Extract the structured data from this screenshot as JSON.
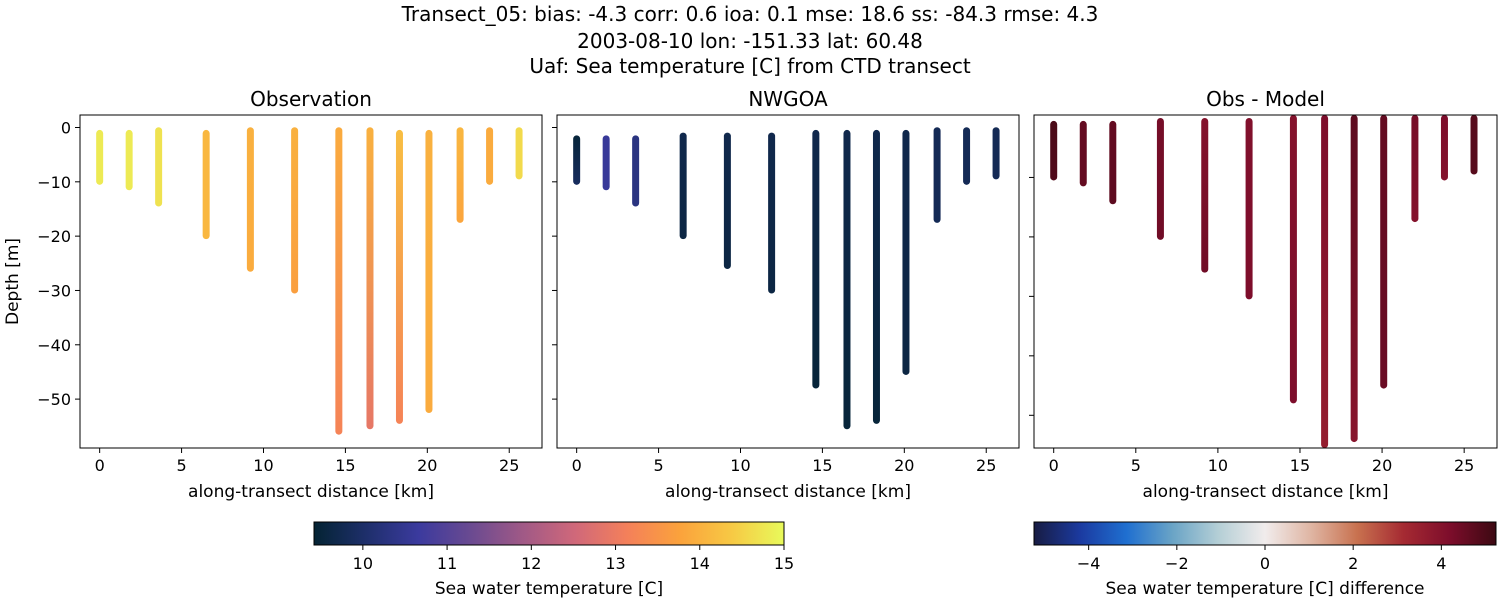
{
  "title_lines": [
    "Transect_05: bias: -4.3  corr: 0.6  ioa: 0.1  mse: 18.6  ss: -84.3  rmse: 4.3",
    "2003-08-10 lon: -151.33 lat: 60.48",
    "Uaf: Sea temperature [C] from CTD transect"
  ],
  "chart_data": [
    {
      "type": "scatter",
      "title": "Observation",
      "xlabel": "along-transect distance [km]",
      "ylabel": "Depth [m]",
      "xlim": [
        -1.2,
        27
      ],
      "ylim": [
        -59,
        2.3
      ],
      "xticks": [
        0,
        5,
        10,
        15,
        20,
        25
      ],
      "yticks": [
        0,
        -10,
        -20,
        -30,
        -40,
        -50
      ],
      "columns": [
        {
          "x": 0,
          "top": -1,
          "bottom": -10,
          "values": [
            14.8,
            14.8
          ]
        },
        {
          "x": 1.8,
          "top": -1,
          "bottom": -11,
          "values": [
            14.8,
            14.8
          ]
        },
        {
          "x": 3.6,
          "top": -0.5,
          "bottom": -14,
          "values": [
            14.7,
            14.7
          ]
        },
        {
          "x": 6.5,
          "top": -1,
          "bottom": -20,
          "values": [
            14.1,
            14.1
          ]
        },
        {
          "x": 9.2,
          "top": -0.5,
          "bottom": -26,
          "values": [
            14.0,
            13.9
          ]
        },
        {
          "x": 11.9,
          "top": -0.5,
          "bottom": -30,
          "values": [
            14.0,
            13.7
          ]
        },
        {
          "x": 14.6,
          "top": -0.5,
          "bottom": -56,
          "values": [
            13.9,
            13.2
          ]
        },
        {
          "x": 16.5,
          "top": -0.5,
          "bottom": -55,
          "values": [
            14.0,
            12.9
          ]
        },
        {
          "x": 18.3,
          "top": -1,
          "bottom": -54,
          "values": [
            14.2,
            13.2
          ]
        },
        {
          "x": 20.1,
          "top": -1,
          "bottom": -52,
          "values": [
            14.0,
            13.9
          ]
        },
        {
          "x": 22,
          "top": -0.5,
          "bottom": -17,
          "values": [
            14.1,
            13.8
          ]
        },
        {
          "x": 23.8,
          "top": -0.5,
          "bottom": -10,
          "values": [
            13.9,
            13.9
          ]
        },
        {
          "x": 25.6,
          "top": -0.5,
          "bottom": -9,
          "values": [
            14.6,
            14.6
          ]
        }
      ]
    },
    {
      "type": "scatter",
      "title": "NWGOA",
      "xlabel": "along-transect distance [km]",
      "xlim": [
        -1.2,
        27
      ],
      "ylim": [
        -59,
        2.3
      ],
      "xticks": [
        0,
        5,
        10,
        15,
        20,
        25
      ],
      "yticks": [
        0,
        -10,
        -20,
        -30,
        -40,
        -50
      ],
      "columns": [
        {
          "x": 0,
          "top": -2,
          "bottom": -10,
          "values": [
            9.5,
            9.9
          ]
        },
        {
          "x": 1.8,
          "top": -2,
          "bottom": -11,
          "values": [
            10.6,
            10.6
          ]
        },
        {
          "x": 3.6,
          "top": -2,
          "bottom": -14,
          "values": [
            10.3,
            10.3
          ]
        },
        {
          "x": 6.5,
          "top": -1.5,
          "bottom": -20,
          "values": [
            9.7,
            9.6
          ]
        },
        {
          "x": 9.2,
          "top": -1.5,
          "bottom": -25.5,
          "values": [
            9.7,
            9.6
          ]
        },
        {
          "x": 11.9,
          "top": -1.5,
          "bottom": -30,
          "values": [
            9.7,
            9.6
          ]
        },
        {
          "x": 14.6,
          "top": -1,
          "bottom": -47.5,
          "values": [
            9.7,
            9.5
          ]
        },
        {
          "x": 16.5,
          "top": -1,
          "bottom": -55,
          "values": [
            9.7,
            9.5
          ]
        },
        {
          "x": 18.3,
          "top": -1,
          "bottom": -54,
          "values": [
            9.7,
            9.5
          ]
        },
        {
          "x": 20.1,
          "top": -1,
          "bottom": -45,
          "values": [
            9.7,
            9.6
          ]
        },
        {
          "x": 22,
          "top": -0.5,
          "bottom": -17,
          "values": [
            9.8,
            9.8
          ]
        },
        {
          "x": 23.8,
          "top": -0.5,
          "bottom": -10,
          "values": [
            9.8,
            9.8
          ]
        },
        {
          "x": 25.6,
          "top": -0.5,
          "bottom": -9,
          "values": [
            9.8,
            9.8
          ]
        }
      ]
    },
    {
      "type": "scatter",
      "title": "Obs - Model",
      "xlabel": "along-transect distance [km]",
      "xlim": [
        -1.2,
        27
      ],
      "ylim": [
        -55.5,
        0.5
      ],
      "xticks": [
        0,
        5,
        10,
        15,
        20,
        25
      ],
      "yticks": [
        -10,
        -20,
        -30,
        -40,
        -50
      ],
      "columns": [
        {
          "x": 0,
          "top": -1,
          "bottom": -10,
          "values": [
            5.0,
            4.9
          ]
        },
        {
          "x": 1.8,
          "top": -1,
          "bottom": -11,
          "values": [
            4.6,
            4.6
          ]
        },
        {
          "x": 3.6,
          "top": -1,
          "bottom": -14,
          "values": [
            4.6,
            4.7
          ]
        },
        {
          "x": 6.5,
          "top": -0.5,
          "bottom": -20,
          "values": [
            4.3,
            4.4
          ]
        },
        {
          "x": 9.2,
          "top": -0.5,
          "bottom": -25.5,
          "values": [
            4.0,
            4.4
          ]
        },
        {
          "x": 11.9,
          "top": -0.5,
          "bottom": -30,
          "values": [
            4.1,
            4.2
          ]
        },
        {
          "x": 14.6,
          "top": 0.5,
          "bottom": -47.5,
          "values": [
            4.0,
            4.2
          ]
        },
        {
          "x": 16.5,
          "top": 0.5,
          "bottom": -55,
          "values": [
            4.2,
            3.6
          ]
        },
        {
          "x": 18.3,
          "top": 0.5,
          "bottom": -54,
          "values": [
            4.7,
            3.9
          ]
        },
        {
          "x": 20.1,
          "top": 0.5,
          "bottom": -45,
          "values": [
            4.6,
            4.5
          ]
        },
        {
          "x": 22,
          "top": 0.5,
          "bottom": -17,
          "values": [
            4.3,
            4.0
          ]
        },
        {
          "x": 23.8,
          "top": 0.5,
          "bottom": -10,
          "values": [
            4.2,
            4.0
          ]
        },
        {
          "x": 25.6,
          "top": 0.5,
          "bottom": -9,
          "values": [
            4.8,
            4.8
          ]
        }
      ]
    }
  ],
  "colorbars": [
    {
      "label": "Sea water temperature [C]",
      "range": [
        9.42,
        15
      ],
      "ticks": [
        10,
        11,
        12,
        13,
        14,
        15
      ],
      "colormap": "thermal"
    },
    {
      "label": "Sea water temperature [C] difference",
      "range": [
        -5.24,
        5.24
      ],
      "ticks": [
        -4,
        -2,
        0,
        2,
        4
      ],
      "colormap": "balance"
    }
  ],
  "colormaps": {
    "thermal": [
      "#042333",
      "#1e2f6b",
      "#3b3a9e",
      "#6a4a91",
      "#a05986",
      "#d0687a",
      "#f4805a",
      "#fba23c",
      "#f7c944",
      "#e8fa5b"
    ],
    "balance": [
      "#181c43",
      "#1b3aa0",
      "#1f6fd0",
      "#6aa4c6",
      "#b5cfd6",
      "#f1ecec",
      "#dfb5a3",
      "#c8714f",
      "#a52a32",
      "#7d0d2b",
      "#3c0912"
    ]
  }
}
